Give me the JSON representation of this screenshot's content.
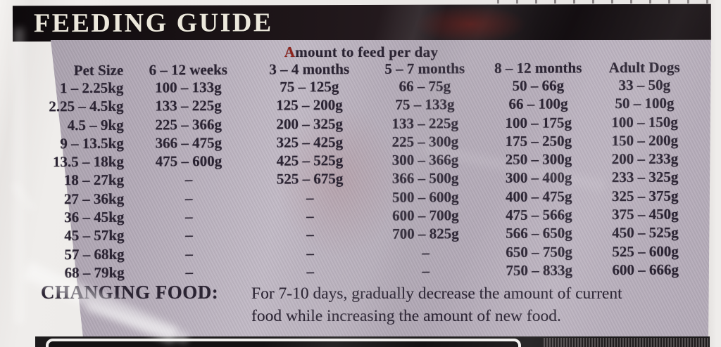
{
  "feeding_guide": {
    "title": "FEEDING GUIDE"
  },
  "table": {
    "title_first_letter": "A",
    "title_rest": "mount to feed per day",
    "columns": [
      "Pet Size",
      "6 – 12 weeks",
      "3 – 4 months",
      "5 – 7 months",
      "8 – 12 months",
      "Adult Dogs"
    ],
    "rows": [
      [
        "1 – 2.25kg",
        "100 – 133g",
        "75 – 125g",
        "66 – 75g",
        "50 – 66g",
        "33 – 50g"
      ],
      [
        "2.25 – 4.5kg",
        "133 – 225g",
        "125 – 200g",
        "75 – 133g",
        "66 – 100g",
        "50 – 100g"
      ],
      [
        "4.5 – 9kg",
        "225 – 366g",
        "200 – 325g",
        "133 – 225g",
        "100 – 175g",
        "100 – 150g"
      ],
      [
        "9 – 13.5kg",
        "366 – 475g",
        "325 – 425g",
        "225 – 300g",
        "175 – 250g",
        "150 – 200g"
      ],
      [
        "13.5 – 18kg",
        "475 – 600g",
        "425 – 525g",
        "300 – 366g",
        "250 – 300g",
        "200 – 233g"
      ],
      [
        "18 – 27kg",
        "–",
        "525 – 675g",
        "366 – 500g",
        "300 – 400g",
        "233 – 325g"
      ],
      [
        "27 – 36kg",
        "–",
        "–",
        "500 – 600g",
        "400 – 475g",
        "325 – 375g"
      ],
      [
        "36 – 45kg",
        "–",
        "–",
        "600 – 700g",
        "475 – 566g",
        "375 – 450g"
      ],
      [
        "45 – 57kg",
        "–",
        "–",
        "700 – 825g",
        "566 – 650g",
        "450 – 525g"
      ],
      [
        "57 – 68kg",
        "–",
        "–",
        "–",
        "650 – 750g",
        "525 – 600g"
      ],
      [
        "68 – 79kg",
        "–",
        "–",
        "–",
        "750 – 833g",
        "600 – 666g"
      ]
    ]
  },
  "changing_food": {
    "label": "CHANGING FOOD:",
    "line1": "For 7-10 days, gradually decrease the amount of current",
    "line2": "food while increasing the amount of new food."
  },
  "colors": {
    "panel": "#b2a9b6",
    "bar": "#171114",
    "ink": "#2b2433",
    "accent_red": "#8e241c",
    "guide_text": "#ece8dc"
  }
}
